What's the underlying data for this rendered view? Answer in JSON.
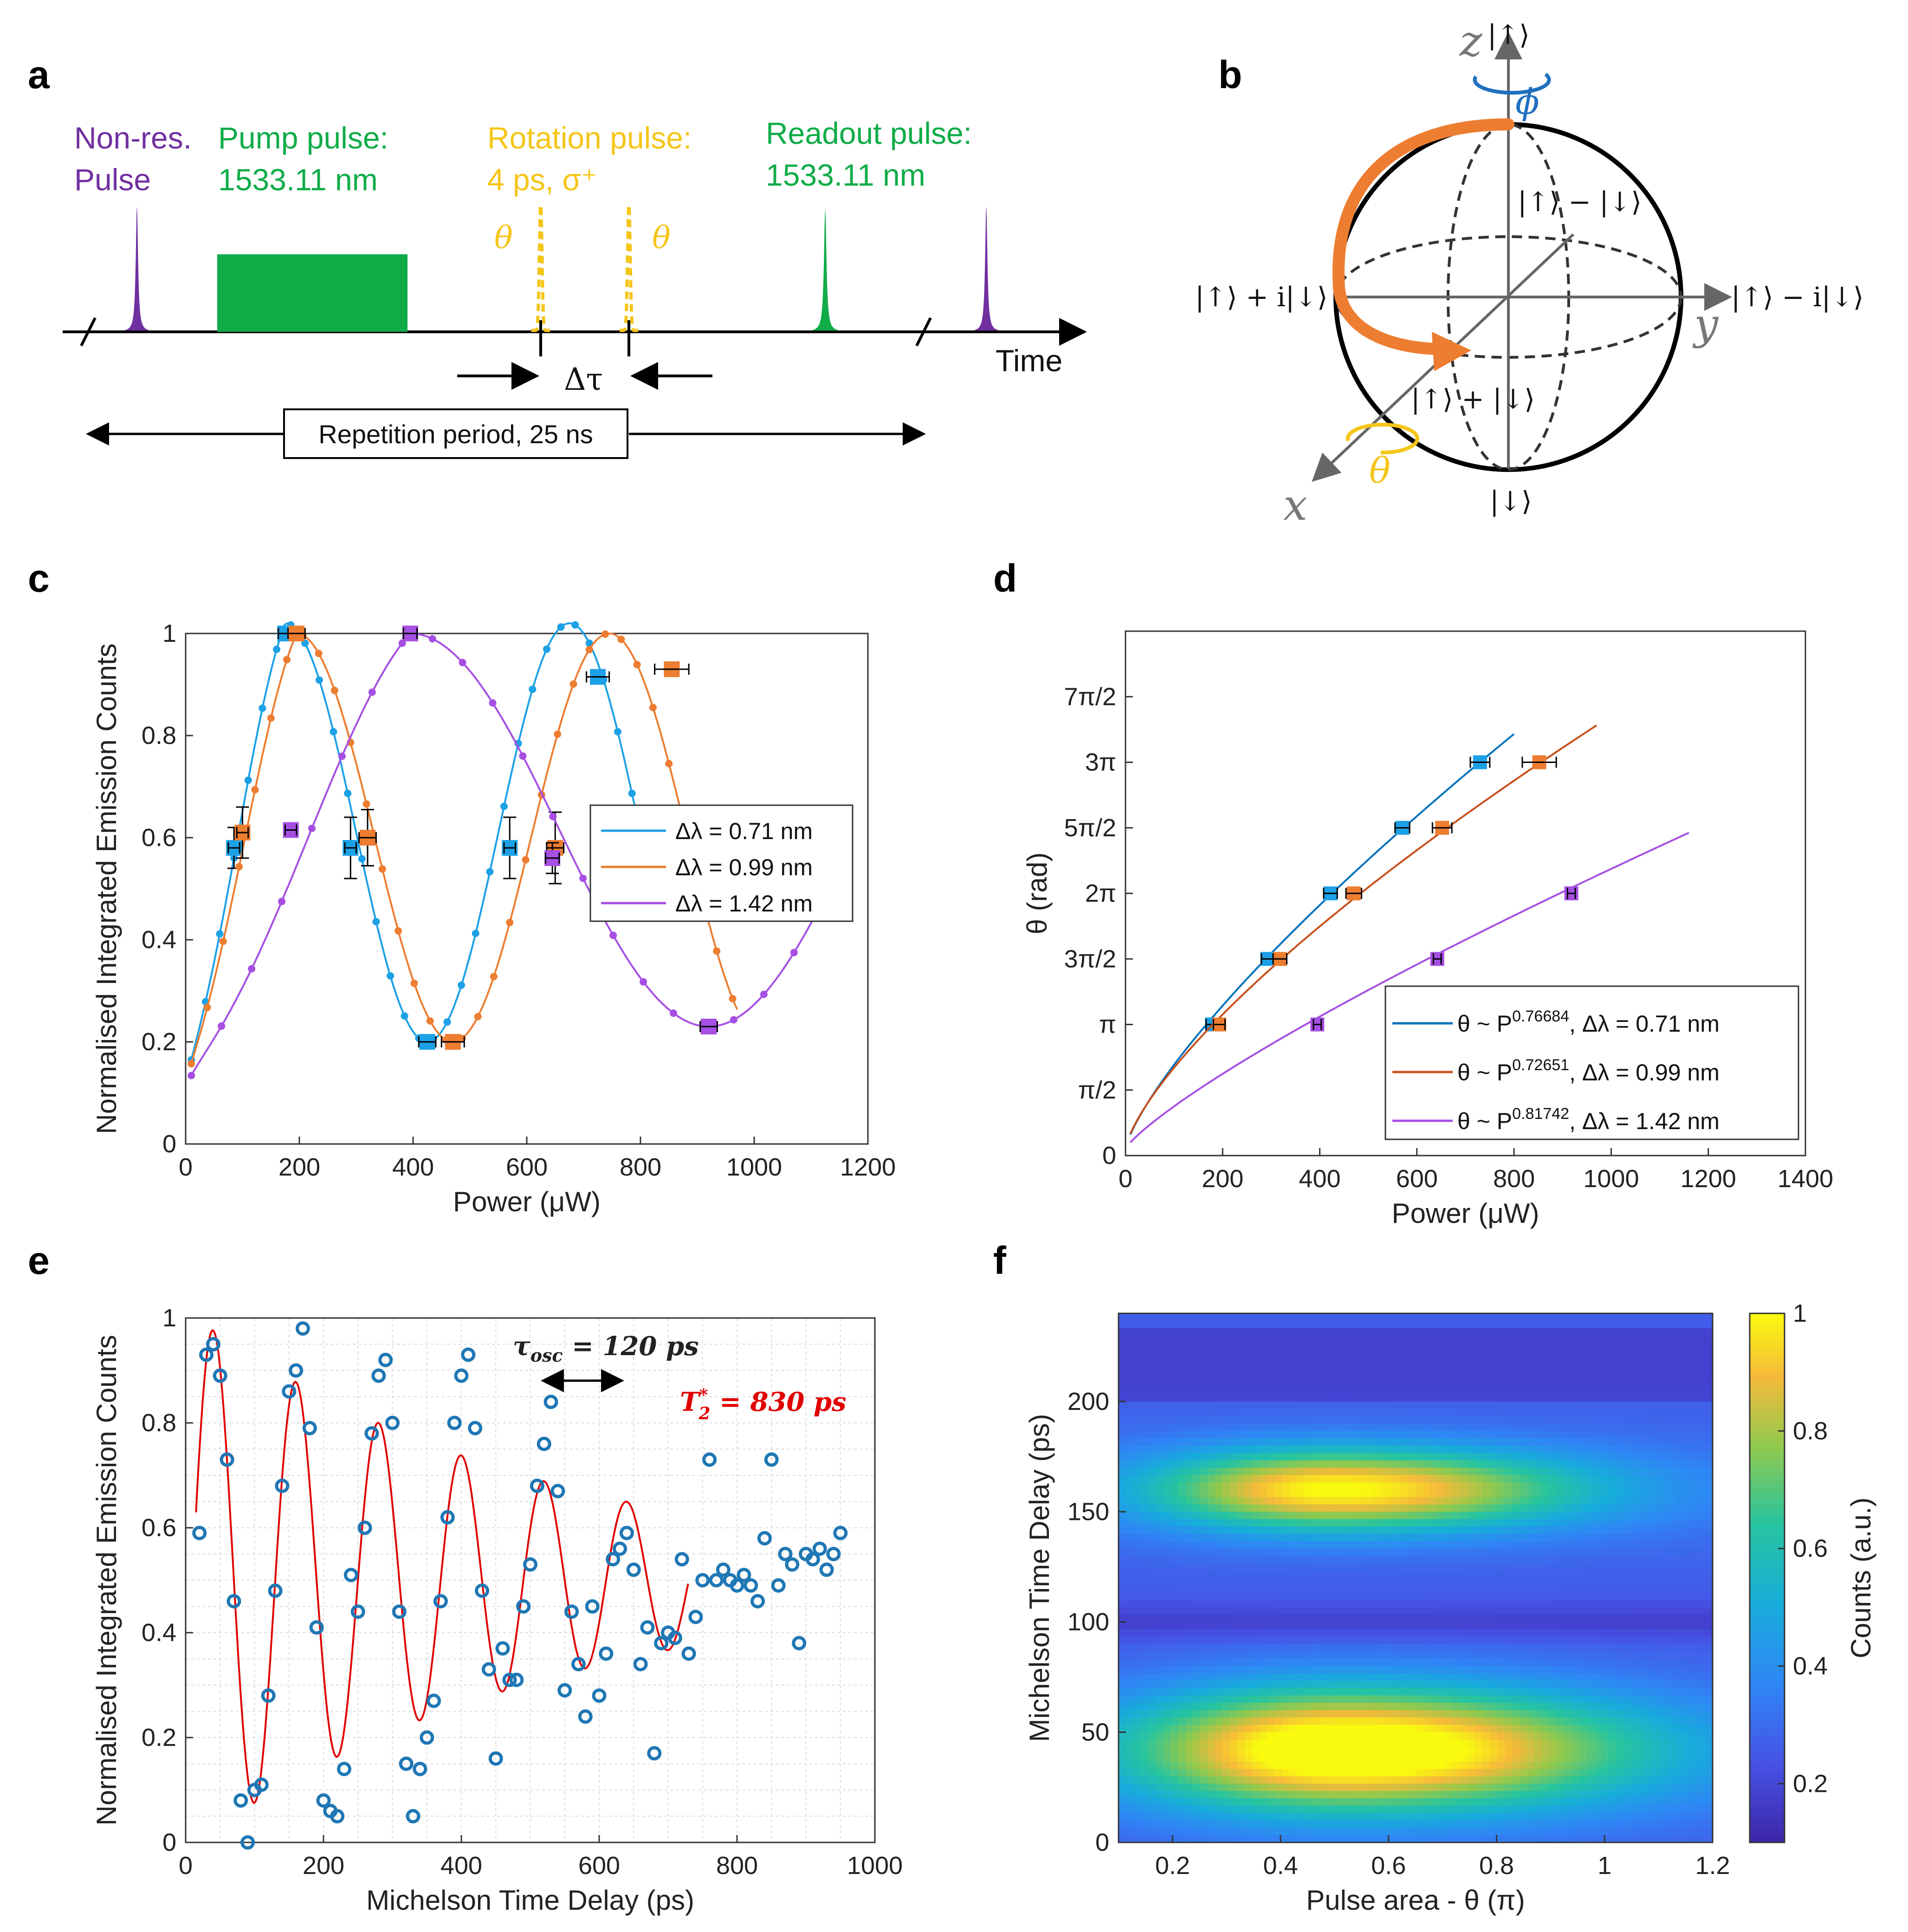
{
  "panel_labels": [
    "a",
    "b",
    "c",
    "d",
    "e",
    "f"
  ],
  "colors": {
    "purple": "#7030a0",
    "green": "#0fac48",
    "gold": "#f5c518",
    "orange": "#ed7d31",
    "blue": "#1ca0e6",
    "violet": "#a64fe3",
    "red": "#e00000",
    "dot_blue": "#1f77b4",
    "phi_blue": "#1f6fbf"
  },
  "panel_a": {
    "nonres_label": [
      "Non-res.",
      "Pulse"
    ],
    "pump_label": [
      "Pump pulse:",
      "1533.11 nm"
    ],
    "rotation_label": [
      "Rotation pulse:",
      "4 ps, σ⁺"
    ],
    "readout_label": [
      "Readout pulse:",
      "1533.11 nm"
    ],
    "theta": "θ",
    "time": "Time",
    "delta_tau": "Δτ",
    "repetition": "Repetition period, 25 ns"
  },
  "panel_b": {
    "up": "|↑⟩",
    "down": "|↓⟩",
    "minus": "|↑⟩ − |↓⟩",
    "plus": "|↑⟩ + |↓⟩",
    "plus_i": "|↑⟩ + i|↓⟩",
    "minus_i": "|↑⟩ − i|↓⟩",
    "z": "z",
    "x": "x",
    "y": "y",
    "phi": "ϕ",
    "theta": "θ"
  },
  "chart_data": [
    {
      "id": "c",
      "type": "scatter",
      "xlabel": "Power (μW)",
      "ylabel": "Normalised Integrated Emission Counts",
      "xlim": [
        0,
        1200
      ],
      "ylim": [
        0,
        1.0
      ],
      "xticks": [
        0,
        200,
        400,
        600,
        800,
        1000,
        1200
      ],
      "yticks": [
        0,
        0.2,
        0.4,
        0.6,
        0.8,
        1
      ],
      "series": [
        {
          "name": "Δλ = 0.71 nm",
          "color": "#1ca0e6",
          "period": 500,
          "phase_x": 175,
          "amp": 0.41,
          "mid": 0.61,
          "markers": [
            [
              85,
              0.58
            ],
            [
              175,
              1.0
            ],
            [
              290,
              0.58
            ],
            [
              425,
              0.2
            ],
            [
              570,
              0.58
            ],
            [
              725,
              0.915
            ]
          ],
          "xerr": [
            10,
            12,
            10,
            15,
            10,
            20
          ],
          "yerr": [
            0.04,
            0,
            0.06,
            0,
            0.06,
            0
          ]
        },
        {
          "name": "Δλ = 0.99 nm",
          "color": "#ed7d31",
          "period": 550,
          "phase_x": 195,
          "amp": 0.4,
          "mid": 0.6,
          "markers": [
            [
              100,
              0.61
            ],
            [
              195,
              1.0
            ],
            [
              320,
              0.6
            ],
            [
              470,
              0.2
            ],
            [
              650,
              0.58
            ],
            [
              855,
              0.93
            ]
          ],
          "xerr": [
            10,
            15,
            15,
            20,
            15,
            30
          ],
          "yerr": [
            0.05,
            0,
            0.055,
            0,
            0.07,
            0
          ]
        },
        {
          "name": "Δλ = 1.42 nm",
          "color": "#a64fe3",
          "period": 1050,
          "phase_x": 395,
          "amp": 0.385,
          "mid": 0.615,
          "markers": [
            [
              185,
              0.615
            ],
            [
              395,
              1.0
            ],
            [
              645,
              0.56
            ],
            [
              920,
              0.23
            ]
          ],
          "xerr": [
            10,
            12,
            12,
            15
          ],
          "yerr": [
            0,
            0,
            0.03,
            0
          ]
        }
      ]
    },
    {
      "id": "d",
      "type": "line",
      "xlabel": "Power (μW)",
      "ylabel": "θ (rad)",
      "xlim": [
        0,
        1400
      ],
      "ylim": [
        0,
        4.0
      ],
      "xticks": [
        0,
        200,
        400,
        600,
        800,
        1000,
        1200,
        1400
      ],
      "yticks": [
        0,
        0.5,
        1,
        1.5,
        2,
        2.5,
        3,
        3.5
      ],
      "ytick_labels": [
        "0",
        "π/2",
        "π",
        "3π/2",
        "2π",
        "5π/2",
        "3π",
        "7π/2"
      ],
      "series": [
        {
          "name": "θ ~ P",
          "exp": "0.76684",
          "suffix": ", Δλ = 0.71 nm",
          "color": "#0072bd",
          "marker": "#1ca0e6",
          "xmax": 800,
          "markers": [
            [
              178,
              1
            ],
            [
              292,
              1.5
            ],
            [
              422,
              2
            ],
            [
              570,
              2.5
            ],
            [
              730,
              3
            ]
          ],
          "xerr": [
            12,
            12,
            14,
            15,
            20
          ]
        },
        {
          "name": "θ ~ P",
          "exp": "0.72651",
          "suffix": ", Δλ = 0.99 nm",
          "color": "#c8501c",
          "marker": "#ed7d31",
          "xmax": 970,
          "markers": [
            [
              193,
              1
            ],
            [
              318,
              1.5
            ],
            [
              470,
              2
            ],
            [
              652,
              2.5
            ],
            [
              852,
              3
            ]
          ],
          "xerr": [
            12,
            14,
            16,
            20,
            35
          ]
        },
        {
          "name": "θ ~ P",
          "exp": "0.81742",
          "suffix": ", Δλ = 1.42 nm",
          "color": "#a64fe3",
          "marker": "#a64fe3",
          "xmax": 1160,
          "markers": [
            [
              395,
              1
            ],
            [
              642,
              1.5
            ],
            [
              918,
              2
            ]
          ],
          "xerr": [
            8,
            8,
            8
          ]
        }
      ]
    },
    {
      "id": "e",
      "type": "scatter",
      "xlabel": "Michelson Time Delay (ps)",
      "ylabel": "Normalised Integrated Emission Counts",
      "xlim": [
        0,
        1000
      ],
      "ylim": [
        0,
        1.0
      ],
      "xticks": [
        0,
        200,
        400,
        600,
        800,
        1000
      ],
      "yticks": [
        0,
        0.2,
        0.4,
        0.6,
        0.8,
        1
      ],
      "annotation_tau": "τ",
      "annotation_tau_sub": "osc",
      "annotation_tau_val": " = 120 ps",
      "annotation_t2": "T",
      "annotation_t2_sup": "*",
      "annotation_t2_sub": "2",
      "annotation_t2_val": " = 830 ps",
      "fit": {
        "x0": 15,
        "x1": 730,
        "period": 120,
        "peak_x": 40,
        "T2": 830
      },
      "points": [
        [
          20,
          0.59
        ],
        [
          30,
          0.93
        ],
        [
          40,
          0.95
        ],
        [
          50,
          0.89
        ],
        [
          60,
          0.73
        ],
        [
          70,
          0.46
        ],
        [
          80,
          0.08
        ],
        [
          90,
          0.0
        ],
        [
          100,
          0.1
        ],
        [
          110,
          0.11
        ],
        [
          120,
          0.28
        ],
        [
          130,
          0.48
        ],
        [
          140,
          0.68
        ],
        [
          150,
          0.86
        ],
        [
          160,
          0.9
        ],
        [
          170,
          0.98
        ],
        [
          180,
          0.79
        ],
        [
          190,
          0.41
        ],
        [
          200,
          0.08
        ],
        [
          210,
          0.06
        ],
        [
          220,
          0.05
        ],
        [
          230,
          0.14
        ],
        [
          240,
          0.51
        ],
        [
          250,
          0.44
        ],
        [
          260,
          0.6
        ],
        [
          270,
          0.78
        ],
        [
          280,
          0.89
        ],
        [
          290,
          0.92
        ],
        [
          300,
          0.8
        ],
        [
          310,
          0.44
        ],
        [
          320,
          0.15
        ],
        [
          330,
          0.05
        ],
        [
          340,
          0.14
        ],
        [
          350,
          0.2
        ],
        [
          360,
          0.27
        ],
        [
          370,
          0.46
        ],
        [
          380,
          0.62
        ],
        [
          390,
          0.8
        ],
        [
          400,
          0.89
        ],
        [
          410,
          0.93
        ],
        [
          420,
          0.79
        ],
        [
          430,
          0.48
        ],
        [
          440,
          0.33
        ],
        [
          450,
          0.16
        ],
        [
          460,
          0.37
        ],
        [
          470,
          0.31
        ],
        [
          480,
          0.31
        ],
        [
          490,
          0.45
        ],
        [
          500,
          0.53
        ],
        [
          510,
          0.68
        ],
        [
          520,
          0.76
        ],
        [
          530,
          0.84
        ],
        [
          540,
          0.67
        ],
        [
          550,
          0.29
        ],
        [
          560,
          0.44
        ],
        [
          570,
          0.34
        ],
        [
          580,
          0.24
        ],
        [
          590,
          0.45
        ],
        [
          600,
          0.28
        ],
        [
          610,
          0.36
        ],
        [
          620,
          0.54
        ],
        [
          630,
          0.56
        ],
        [
          640,
          0.59
        ],
        [
          650,
          0.52
        ],
        [
          660,
          0.34
        ],
        [
          670,
          0.41
        ],
        [
          680,
          0.17
        ],
        [
          690,
          0.38
        ],
        [
          700,
          0.4
        ],
        [
          710,
          0.39
        ],
        [
          720,
          0.54
        ],
        [
          730,
          0.36
        ],
        [
          740,
          0.43
        ],
        [
          750,
          0.5
        ],
        [
          760,
          0.73
        ],
        [
          770,
          0.5
        ],
        [
          780,
          0.52
        ],
        [
          790,
          0.5
        ],
        [
          800,
          0.49
        ],
        [
          810,
          0.51
        ],
        [
          820,
          0.49
        ],
        [
          830,
          0.46
        ],
        [
          840,
          0.58
        ],
        [
          850,
          0.73
        ],
        [
          860,
          0.49
        ],
        [
          870,
          0.55
        ],
        [
          880,
          0.53
        ],
        [
          890,
          0.38
        ],
        [
          900,
          0.55
        ],
        [
          910,
          0.54
        ],
        [
          920,
          0.56
        ],
        [
          930,
          0.52
        ],
        [
          940,
          0.55
        ],
        [
          950,
          0.59
        ]
      ]
    },
    {
      "id": "f",
      "type": "heatmap",
      "xlabel": "Pulse area - θ (π)",
      "ylabel": "Michelson Time Delay (ps)",
      "colorbar_label": "Counts (a.u.)",
      "xlim": [
        0.1,
        1.2
      ],
      "ylim": [
        0,
        240
      ],
      "xticks": [
        0.2,
        0.4,
        0.6,
        0.8,
        1,
        1.2
      ],
      "yticks": [
        0,
        50,
        100,
        150,
        200
      ],
      "cticks": [
        0.2,
        0.4,
        0.6,
        0.8,
        1
      ],
      "clim": [
        0.1,
        1.0
      ],
      "blobs": [
        {
          "cx": 0.52,
          "cy": 42,
          "sx": 0.28,
          "sy": 20,
          "amp": 0.82,
          "tail": 0.9
        },
        {
          "cx": 0.5,
          "cy": 160,
          "sx": 0.24,
          "sy": 13,
          "amp": 0.7,
          "tail": 0.9
        }
      ]
    }
  ]
}
